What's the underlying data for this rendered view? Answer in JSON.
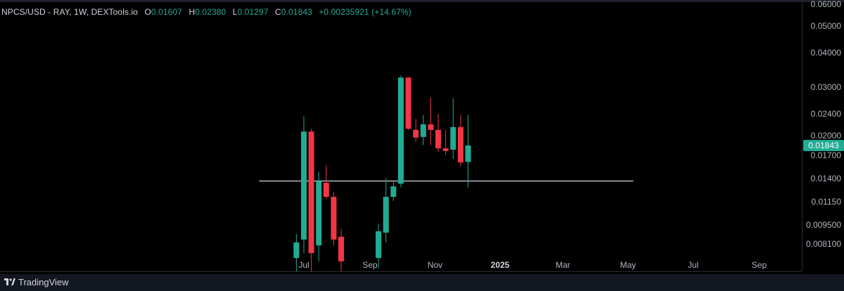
{
  "legend": {
    "symbol": "NPCS/USD - RAY, 1W, DEXTools.io",
    "open_label": "O",
    "open": "0.01607",
    "high_label": "H",
    "high": "0.02380",
    "low_label": "L",
    "low": "0.01297",
    "close_label": "C",
    "close": "0.01843",
    "change": "+0.00235921 (+14.67%)"
  },
  "last_price_label": "0.01843",
  "footer": {
    "brand": "TradingView"
  },
  "colors": {
    "up": "#22ab94",
    "down": "#f23645",
    "hline": "#d1d4dc",
    "background": "#000000"
  },
  "chart_data": {
    "type": "candlestick",
    "scale": "log",
    "interval": "1W",
    "y_ticks": [
      "0.06000",
      "0.05000",
      "0.04000",
      "0.03000",
      "0.02400",
      "0.02000",
      "0.01700",
      "0.01400",
      "0.01150",
      "0.009500",
      "0.008100"
    ],
    "x_ticks": [
      {
        "label": "Jul",
        "date": "2024-07-01"
      },
      {
        "label": "Sep",
        "date": "2024-09-01"
      },
      {
        "label": "Nov",
        "date": "2024-11-01"
      },
      {
        "label": "2025",
        "date": "2025-01-01",
        "bold": true
      },
      {
        "label": "Mar",
        "date": "2025-03-01"
      },
      {
        "label": "May",
        "date": "2025-05-01"
      },
      {
        "label": "Jul",
        "date": "2025-07-01"
      },
      {
        "label": "Sep",
        "date": "2025-09-01"
      }
    ],
    "candles": [
      {
        "date": "2024-06-24",
        "o": 0.0072,
        "h": 0.0088,
        "l": 0.006,
        "c": 0.0082
      },
      {
        "date": "2024-07-01",
        "o": 0.0084,
        "h": 0.0235,
        "l": 0.0075,
        "c": 0.0207
      },
      {
        "date": "2024-07-08",
        "o": 0.0207,
        "h": 0.0212,
        "l": 0.006,
        "c": 0.0075
      },
      {
        "date": "2024-07-15",
        "o": 0.008,
        "h": 0.0148,
        "l": 0.007,
        "c": 0.0137
      },
      {
        "date": "2024-07-22",
        "o": 0.0135,
        "h": 0.0156,
        "l": 0.0118,
        "c": 0.012
      },
      {
        "date": "2024-07-29",
        "o": 0.012,
        "h": 0.0125,
        "l": 0.008,
        "c": 0.0084
      },
      {
        "date": "2024-08-05",
        "o": 0.0086,
        "h": 0.0092,
        "l": 0.006,
        "c": 0.007
      },
      {
        "date": "2024-09-09",
        "o": 0.0072,
        "h": 0.0096,
        "l": 0.0066,
        "c": 0.009
      },
      {
        "date": "2024-09-16",
        "o": 0.0089,
        "h": 0.014,
        "l": 0.0082,
        "c": 0.012
      },
      {
        "date": "2024-09-23",
        "o": 0.012,
        "h": 0.0137,
        "l": 0.0116,
        "c": 0.0131
      },
      {
        "date": "2024-09-30",
        "o": 0.0134,
        "h": 0.0331,
        "l": 0.013,
        "c": 0.0325
      },
      {
        "date": "2024-10-07",
        "o": 0.0325,
        "h": 0.0327,
        "l": 0.021,
        "c": 0.0212
      },
      {
        "date": "2024-10-14",
        "o": 0.021,
        "h": 0.023,
        "l": 0.019,
        "c": 0.0197
      },
      {
        "date": "2024-10-21",
        "o": 0.0198,
        "h": 0.0238,
        "l": 0.0185,
        "c": 0.022
      },
      {
        "date": "2024-10-28",
        "o": 0.022,
        "h": 0.0275,
        "l": 0.0185,
        "c": 0.021
      },
      {
        "date": "2024-11-04",
        "o": 0.021,
        "h": 0.024,
        "l": 0.0175,
        "c": 0.018
      },
      {
        "date": "2024-11-11",
        "o": 0.018,
        "h": 0.021,
        "l": 0.017,
        "c": 0.0176
      },
      {
        "date": "2024-11-18",
        "o": 0.0178,
        "h": 0.0273,
        "l": 0.0165,
        "c": 0.0215
      },
      {
        "date": "2024-11-25",
        "o": 0.0215,
        "h": 0.0238,
        "l": 0.0155,
        "c": 0.016
      },
      {
        "date": "2024-12-02",
        "o": 0.01607,
        "h": 0.0238,
        "l": 0.01297,
        "c": 0.01843
      }
    ],
    "horizontal_line": {
      "price": 0.0137,
      "start": "2024-05-20",
      "end": "2025-05-06"
    }
  }
}
